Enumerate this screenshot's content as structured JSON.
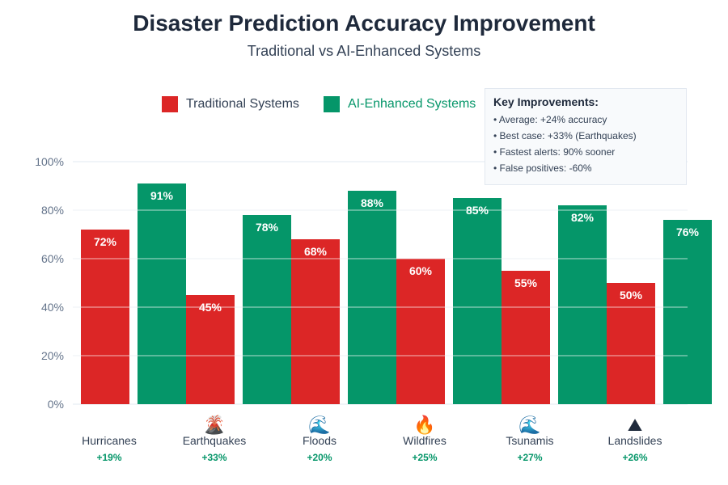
{
  "colors": {
    "traditional": "#dc2626",
    "ai": "#059669",
    "title": "#1e293b",
    "grid": "#e2e8f0",
    "axis_text": "#64748b"
  },
  "chart_data": {
    "type": "bar",
    "title": "Disaster Prediction Accuracy Improvement",
    "subtitle": "Traditional vs AI-Enhanced Systems",
    "xlabel": "",
    "ylabel": "",
    "ylim": [
      0,
      100
    ],
    "yticks": [
      "0%",
      "20%",
      "40%",
      "60%",
      "80%",
      "100%"
    ],
    "grid": true,
    "legend_position": "top",
    "categories": [
      "Hurricanes",
      "Earthquakes",
      "Floods",
      "Wildfires",
      "Tsunamis",
      "Landslides"
    ],
    "category_icons": [
      "",
      "volcano-icon",
      "water-wave-icon",
      "fire-icon",
      "water-wave-icon",
      "landslide-icon"
    ],
    "category_icon_glyphs": [
      "",
      "🌋",
      "🌊",
      "🔥",
      "🌊",
      "⛰"
    ],
    "improvements": [
      "+19%",
      "+33%",
      "+20%",
      "+25%",
      "+27%",
      "+26%"
    ],
    "series": [
      {
        "name": "Traditional Systems",
        "values": [
          72,
          45,
          68,
          60,
          55,
          50
        ],
        "labels": [
          "72%",
          "45%",
          "68%",
          "60%",
          "55%",
          "50%"
        ]
      },
      {
        "name": "AI-Enhanced Systems",
        "values": [
          91,
          78,
          88,
          85,
          82,
          76
        ],
        "labels": [
          "91%",
          "78%",
          "88%",
          "85%",
          "82%",
          "76%"
        ]
      }
    ]
  },
  "legend": {
    "traditional": "Traditional Systems",
    "ai": "AI-Enhanced Systems"
  },
  "key_improvements": {
    "title": "Key Improvements:",
    "lines": [
      "• Average: +24% accuracy",
      "• Best case: +33% (Earthquakes)",
      "• Fastest alerts: 90% sooner",
      "• False positives: -60%"
    ]
  }
}
